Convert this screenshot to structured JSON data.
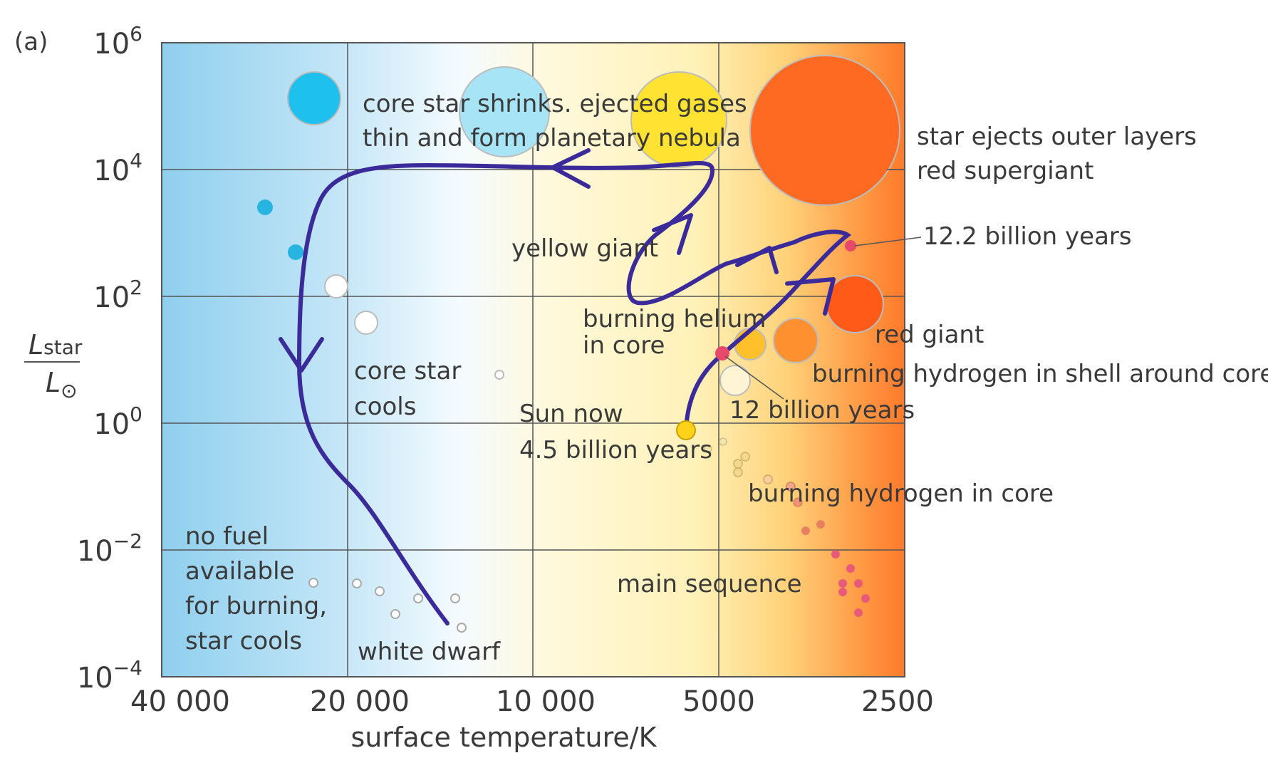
{
  "panel_label": "(a)",
  "axes": {
    "x_label": "surface temperature/K",
    "y_label_num_main": "L",
    "y_label_num_sub": "star",
    "y_label_den_main": "L",
    "y_label_den_sub": "⊙",
    "y_scale": "log",
    "x_scale": "log (reversed)",
    "x_ticks": [
      "40 000",
      "20 000",
      "10 000",
      "5000",
      "2500"
    ],
    "x_tick_values": [
      40000,
      20000,
      10000,
      5000,
      2500
    ],
    "y_tick_exponents": [
      "6",
      "4",
      "2",
      "0",
      "−2",
      "−4"
    ],
    "y_tick_base": "10",
    "y_tick_values": [
      1000000,
      10000,
      100,
      1,
      0.01,
      0.0001
    ],
    "grid": true
  },
  "annotations": {
    "planetary_1": "core star shrinks. ejected gases",
    "planetary_2": "thin and form planetary nebula",
    "supergiant_1": "star ejects outer layers",
    "supergiant_2": "red supergiant",
    "age_12_2": "12.2 billion years",
    "yellow_giant": "yellow giant",
    "helium_1": "burning helium",
    "helium_2": "in core",
    "red_giant": "red giant",
    "shell": "burning hydrogen in shell around core",
    "core_cools_1": "core star",
    "core_cools_2": "cools",
    "age_12": "12 billion years",
    "sun_now": "Sun now",
    "age_4_5": "4.5 billion years",
    "core_burning": "burning hydrogen in core",
    "no_fuel_1": "no fuel",
    "no_fuel_2": "available",
    "no_fuel_3": "for burning,",
    "no_fuel_4": "star cools",
    "main_sequence": "main sequence",
    "white_dwarf": "white dwarf"
  },
  "colors": {
    "track": "#3a2a9a",
    "hot_bg": "#8fcfee",
    "mid_bg": "#fff7d0",
    "cool_bg": "#ff7a2a",
    "marker_pink": "#e8486a"
  },
  "chart_data": {
    "type": "scatter",
    "title": "",
    "xlabel": "surface temperature/K",
    "ylabel": "L_star / L_⊙",
    "xlim": [
      40000,
      2500
    ],
    "ylim": [
      0.0001,
      1000000
    ],
    "sun_track_points": [
      {
        "label": "Sun now 4.5 billion years",
        "T": 5700,
        "L": 0.8
      },
      {
        "label": "12 billion years",
        "T": 4700,
        "L": 15
      },
      {
        "label": "12.2 billion years",
        "T": 3000,
        "L": 500
      }
    ]
  }
}
